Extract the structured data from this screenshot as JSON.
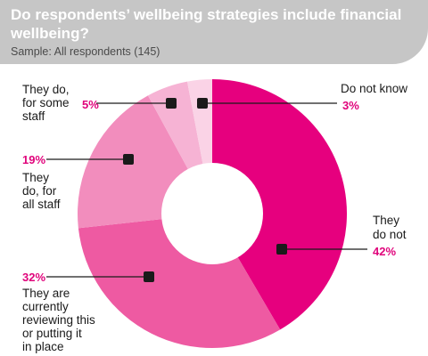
{
  "header": {
    "title": "Do respondents’ wellbeing strategies include financial wellbeing?",
    "sample": "Sample: All respondents (145)"
  },
  "chart_data": {
    "type": "pie",
    "title": "Do respondents’ wellbeing strategies include financial wellbeing?",
    "subtitle": "Sample: All respondents (145)",
    "donut": true,
    "slices": [
      {
        "label": "They do not",
        "value": 42,
        "display": "42%",
        "color": "#e6007e"
      },
      {
        "label": "They are currently reviewing this or putting it in place",
        "value": 32,
        "display": "32%",
        "color": "#ee5aa2"
      },
      {
        "label": "They do, for all staff",
        "value": 19,
        "display": "19%",
        "color": "#f28dbd"
      },
      {
        "label": "They do, for some staff",
        "value": 5,
        "display": "5%",
        "color": "#f6b3d4"
      },
      {
        "label": "Do not know",
        "value": 3,
        "display": "3%",
        "color": "#fad3e6"
      }
    ],
    "label_lines": {
      "do_not": [
        "They",
        "do not"
      ],
      "reviewing": [
        "They are",
        "currently",
        "reviewing this",
        "or putting it",
        "in place"
      ],
      "all_staff": [
        "They",
        "do, for",
        "all staff"
      ],
      "some_staff": [
        "They do,",
        "for some",
        "staff"
      ],
      "dont_know": [
        "Do not know"
      ]
    }
  }
}
